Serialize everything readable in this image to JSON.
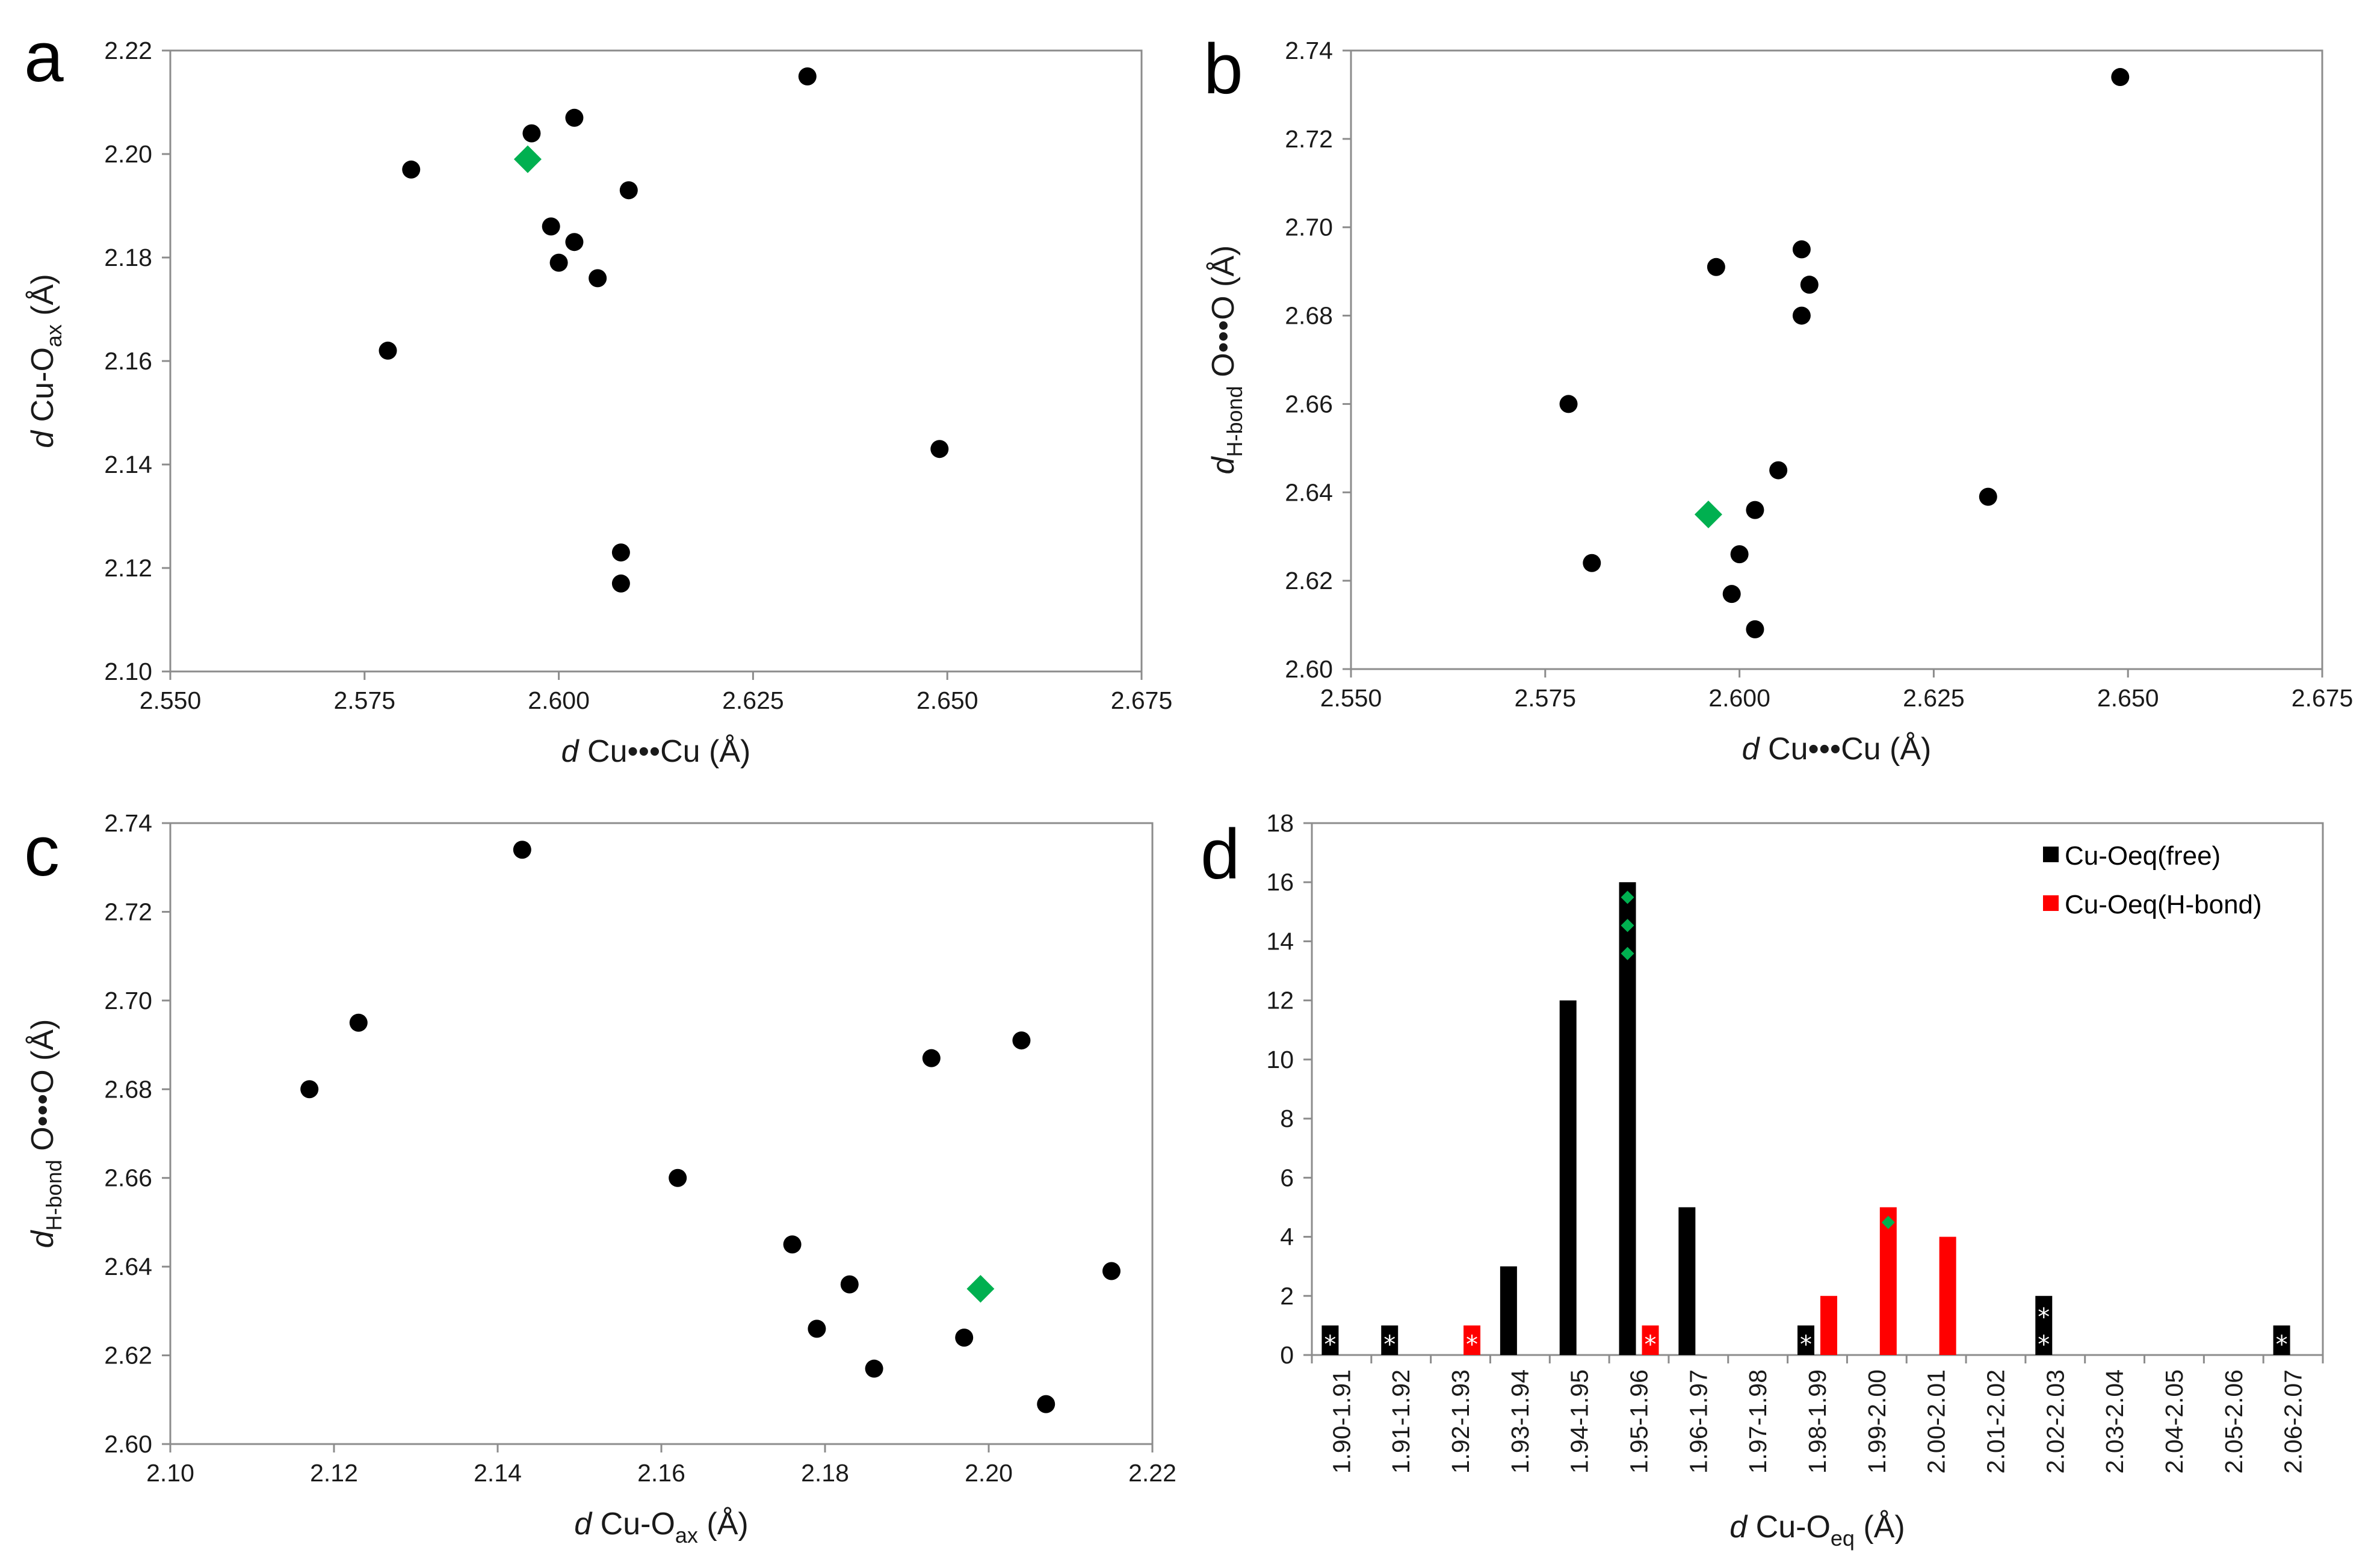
{
  "chart_data": [
    {
      "panel": "a",
      "type": "scatter",
      "xlabel": {
        "italic": "d",
        "text": " Cu•••Cu (Å)"
      },
      "ylabel": {
        "italic": "d",
        "pre": " Cu-O",
        "sub": "ax",
        "post": " (Å)"
      },
      "xlim": [
        2.55,
        2.675
      ],
      "ylim": [
        2.1,
        2.22
      ],
      "xticks": [
        "2.550",
        "2.575",
        "2.600",
        "2.625",
        "2.650",
        "2.675"
      ],
      "yticks": [
        "2.10",
        "2.12",
        "2.14",
        "2.16",
        "2.18",
        "2.20",
        "2.22"
      ],
      "grid": false,
      "series": [
        {
          "marker": "circle",
          "color": "#000000",
          "points": [
            [
              2.578,
              2.162
            ],
            [
              2.581,
              2.197
            ],
            [
              2.5965,
              2.204
            ],
            [
              2.599,
              2.186
            ],
            [
              2.6,
              2.179
            ],
            [
              2.602,
              2.183
            ],
            [
              2.602,
              2.207
            ],
            [
              2.605,
              2.176
            ],
            [
              2.608,
              2.123
            ],
            [
              2.608,
              2.117
            ],
            [
              2.609,
              2.193
            ],
            [
              2.632,
              2.215
            ],
            [
              2.649,
              2.143
            ]
          ]
        },
        {
          "marker": "diamond",
          "color": "#00b050",
          "points": [
            [
              2.596,
              2.199
            ]
          ]
        }
      ]
    },
    {
      "panel": "b",
      "type": "scatter",
      "xlabel": {
        "italic": "d",
        "text": " Cu•••Cu (Å)"
      },
      "ylabel": {
        "italic": "d",
        "sub": "H-bond",
        "post": " O•••O (Å)"
      },
      "xlim": [
        2.55,
        2.675
      ],
      "ylim": [
        2.6,
        2.74
      ],
      "xticks": [
        "2.550",
        "2.575",
        "2.600",
        "2.625",
        "2.650",
        "2.675"
      ],
      "yticks": [
        "2.60",
        "2.62",
        "2.64",
        "2.66",
        "2.68",
        "2.70",
        "2.72",
        "2.74"
      ],
      "grid": false,
      "series": [
        {
          "marker": "circle",
          "color": "#000000",
          "points": [
            [
              2.578,
              2.66
            ],
            [
              2.581,
              2.624
            ],
            [
              2.597,
              2.691
            ],
            [
              2.599,
              2.617
            ],
            [
              2.6,
              2.626
            ],
            [
              2.602,
              2.636
            ],
            [
              2.602,
              2.609
            ],
            [
              2.605,
              2.645
            ],
            [
              2.608,
              2.695
            ],
            [
              2.608,
              2.68
            ],
            [
              2.609,
              2.687
            ],
            [
              2.632,
              2.639
            ],
            [
              2.649,
              2.734
            ]
          ]
        },
        {
          "marker": "diamond",
          "color": "#00b050",
          "points": [
            [
              2.596,
              2.635
            ]
          ]
        }
      ]
    },
    {
      "panel": "c",
      "type": "scatter",
      "xlabel": {
        "italic": "d",
        "pre": " Cu-O",
        "sub": "ax",
        "post": " (Å)"
      },
      "ylabel": {
        "italic": "d",
        "sub": "H-bond",
        "post": " O•••O (Å)"
      },
      "xlim": [
        2.1,
        2.22
      ],
      "ylim": [
        2.6,
        2.74
      ],
      "xticks": [
        "2.10",
        "2.12",
        "2.14",
        "2.16",
        "2.18",
        "2.20",
        "2.22"
      ],
      "yticks": [
        "2.60",
        "2.62",
        "2.64",
        "2.66",
        "2.68",
        "2.70",
        "2.72",
        "2.74"
      ],
      "grid": false,
      "series": [
        {
          "marker": "circle",
          "color": "#000000",
          "points": [
            [
              2.117,
              2.68
            ],
            [
              2.123,
              2.695
            ],
            [
              2.143,
              2.734
            ],
            [
              2.162,
              2.66
            ],
            [
              2.176,
              2.645
            ],
            [
              2.179,
              2.626
            ],
            [
              2.183,
              2.636
            ],
            [
              2.186,
              2.617
            ],
            [
              2.193,
              2.687
            ],
            [
              2.197,
              2.624
            ],
            [
              2.204,
              2.691
            ],
            [
              2.207,
              2.609
            ],
            [
              2.215,
              2.639
            ]
          ]
        },
        {
          "marker": "diamond",
          "color": "#00b050",
          "points": [
            [
              2.199,
              2.635
            ]
          ]
        }
      ]
    },
    {
      "panel": "d",
      "type": "bar",
      "xlabel": {
        "italic": "d",
        "pre": " Cu-O",
        "sub": "eq",
        "post": " (Å)"
      },
      "ylim": [
        0,
        18
      ],
      "yticks": [
        "0",
        "2",
        "4",
        "6",
        "8",
        "10",
        "12",
        "14",
        "16",
        "18"
      ],
      "grid": false,
      "legend_position": "top-right",
      "categories": [
        "1.90-1.91",
        "1.91-1.92",
        "1.92-1.93",
        "1.93-1.94",
        "1.94-1.95",
        "1.95-1.96",
        "1.96-1.97",
        "1.97-1.98",
        "1.98-1.99",
        "1.99-2.00",
        "2.00-2.01",
        "2.01-2.02",
        "2.02-2.03",
        "2.03-2.04",
        "2.04-2.05",
        "2.05-2.06",
        "2.06-2.07"
      ],
      "series": [
        {
          "name": "Cu-Oeq(free)",
          "color": "#000000",
          "values": [
            1,
            1,
            0,
            3,
            12,
            16,
            5,
            0,
            1,
            0,
            0,
            0,
            2,
            0,
            0,
            0,
            1
          ],
          "star_marks": [
            1,
            1,
            0,
            0,
            0,
            0,
            0,
            0,
            1,
            0,
            0,
            0,
            2,
            0,
            0,
            0,
            1
          ],
          "diamond_marks": [
            0,
            0,
            0,
            0,
            0,
            3,
            0,
            0,
            0,
            0,
            0,
            0,
            0,
            0,
            0,
            0,
            0
          ]
        },
        {
          "name": "Cu-Oeq(H-bond)",
          "color": "#ff0000",
          "values": [
            0,
            0,
            1,
            0,
            0,
            1,
            0,
            0,
            2,
            5,
            4,
            0,
            0,
            0,
            0,
            0,
            0
          ],
          "star_marks": [
            0,
            0,
            1,
            0,
            0,
            1,
            0,
            0,
            0,
            0,
            0,
            0,
            0,
            0,
            0,
            0,
            0
          ],
          "diamond_marks": [
            0,
            0,
            0,
            0,
            0,
            0,
            0,
            0,
            0,
            1,
            0,
            0,
            0,
            0,
            0,
            0,
            0
          ]
        }
      ],
      "mark_symbols": {
        "star": "*",
        "diamond_color": "#00b050"
      }
    }
  ],
  "panel_letters": [
    "a",
    "b",
    "c",
    "d"
  ]
}
